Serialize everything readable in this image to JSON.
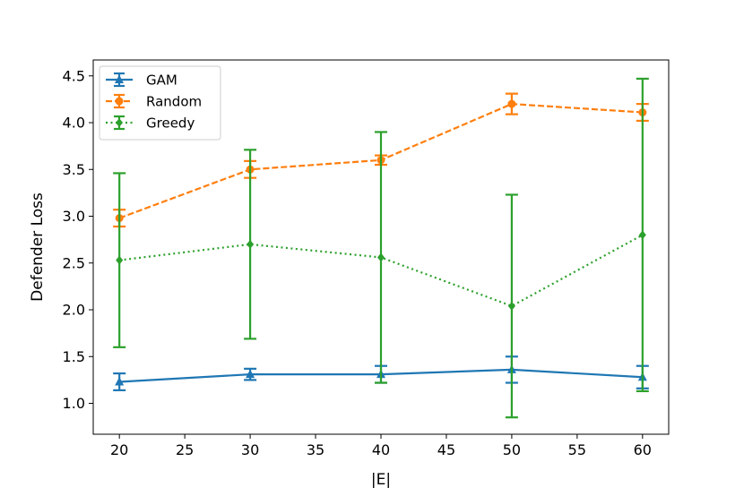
{
  "chart_data": {
    "type": "line",
    "title": "",
    "xlabel": "|E|",
    "ylabel": "Defender Loss",
    "x": [
      20,
      30,
      40,
      50,
      60
    ],
    "xlim": [
      18,
      62
    ],
    "ylim": [
      0.67,
      4.67
    ],
    "xticks": [
      "20",
      "25",
      "30",
      "35",
      "40",
      "45",
      "50",
      "55",
      "60"
    ],
    "yticks": [
      "1.0",
      "1.5",
      "2.0",
      "2.5",
      "3.0",
      "3.5",
      "4.0",
      "4.5"
    ],
    "grid": false,
    "legend_position": "top-left",
    "series": [
      {
        "name": "GAM",
        "color": "#1f77b4",
        "line_style": "solid",
        "marker": "triangle",
        "values": [
          1.23,
          1.31,
          1.31,
          1.36,
          1.28
        ],
        "errors": [
          0.09,
          0.06,
          0.09,
          0.14,
          0.12
        ]
      },
      {
        "name": "Random",
        "color": "#ff7f0e",
        "line_style": "dashed",
        "marker": "circle",
        "values": [
          2.98,
          3.5,
          3.6,
          4.2,
          4.11
        ],
        "errors": [
          0.09,
          0.09,
          0.05,
          0.11,
          0.09
        ]
      },
      {
        "name": "Greedy",
        "color": "#2ca02c",
        "line_style": "dotted",
        "marker": "diamond",
        "values": [
          2.53,
          2.7,
          2.56,
          2.04,
          2.8
        ],
        "errors": [
          0.93,
          1.01,
          1.34,
          1.19,
          1.67
        ]
      }
    ]
  }
}
